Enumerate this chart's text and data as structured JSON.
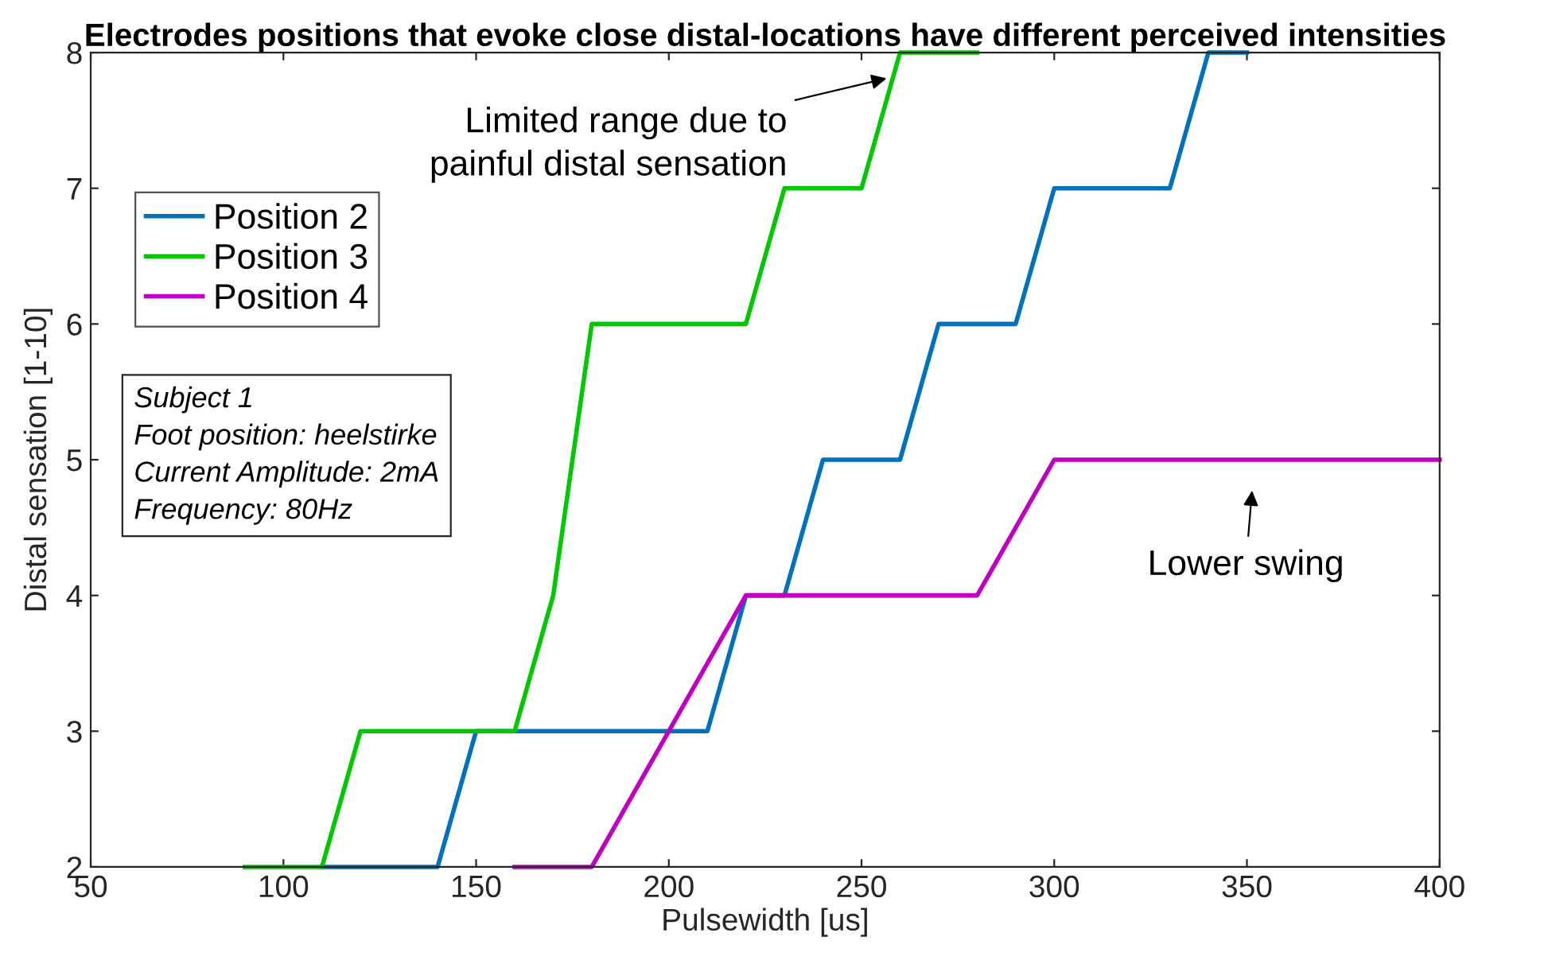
{
  "chart_data": {
    "type": "line",
    "title": "Electrodes positions that evoke close distal-locations have different perceived intensities",
    "xlabel": "Pulsewidth [us]",
    "ylabel": "Distal sensation [1-10]",
    "series": [
      {
        "name": "Position 2",
        "color": "#0072bd",
        "x": [
          110,
          140,
          150,
          210,
          220,
          230,
          240,
          260,
          270,
          290,
          300,
          330,
          340,
          350
        ],
        "values": [
          2,
          2,
          3,
          3,
          4,
          4,
          5,
          5,
          6,
          6,
          7,
          7,
          8,
          8
        ]
      },
      {
        "name": "Position 3",
        "color": "#00c800",
        "x": [
          90,
          110,
          120,
          160,
          170,
          180,
          220,
          230,
          250,
          260,
          280
        ],
        "values": [
          2,
          2,
          3,
          3,
          4,
          6,
          6,
          7,
          7,
          8,
          8
        ]
      },
      {
        "name": "Position 4",
        "color": "#c000c0",
        "x": [
          160,
          180,
          220,
          280,
          300,
          400
        ],
        "values": [
          2,
          2,
          4,
          4,
          5,
          5
        ]
      }
    ],
    "xlim": [
      50,
      400
    ],
    "ylim": [
      2,
      8
    ],
    "xticks": [
      50,
      100,
      150,
      200,
      250,
      300,
      350,
      400
    ],
    "yticks": [
      2,
      3,
      4,
      5,
      6,
      7,
      8
    ],
    "legend": "top left",
    "annotations": [
      {
        "text": "Limited range due to\npainful distal sensation",
        "x": 256.5,
        "y": 7.81
      },
      {
        "text": "Lower swing",
        "x": 352,
        "y": 5
      },
      "Subject 1\nFoot position: heelstirke\nCurrent Amplitude: 2mA\nFrequency: 80Hz"
    ]
  }
}
